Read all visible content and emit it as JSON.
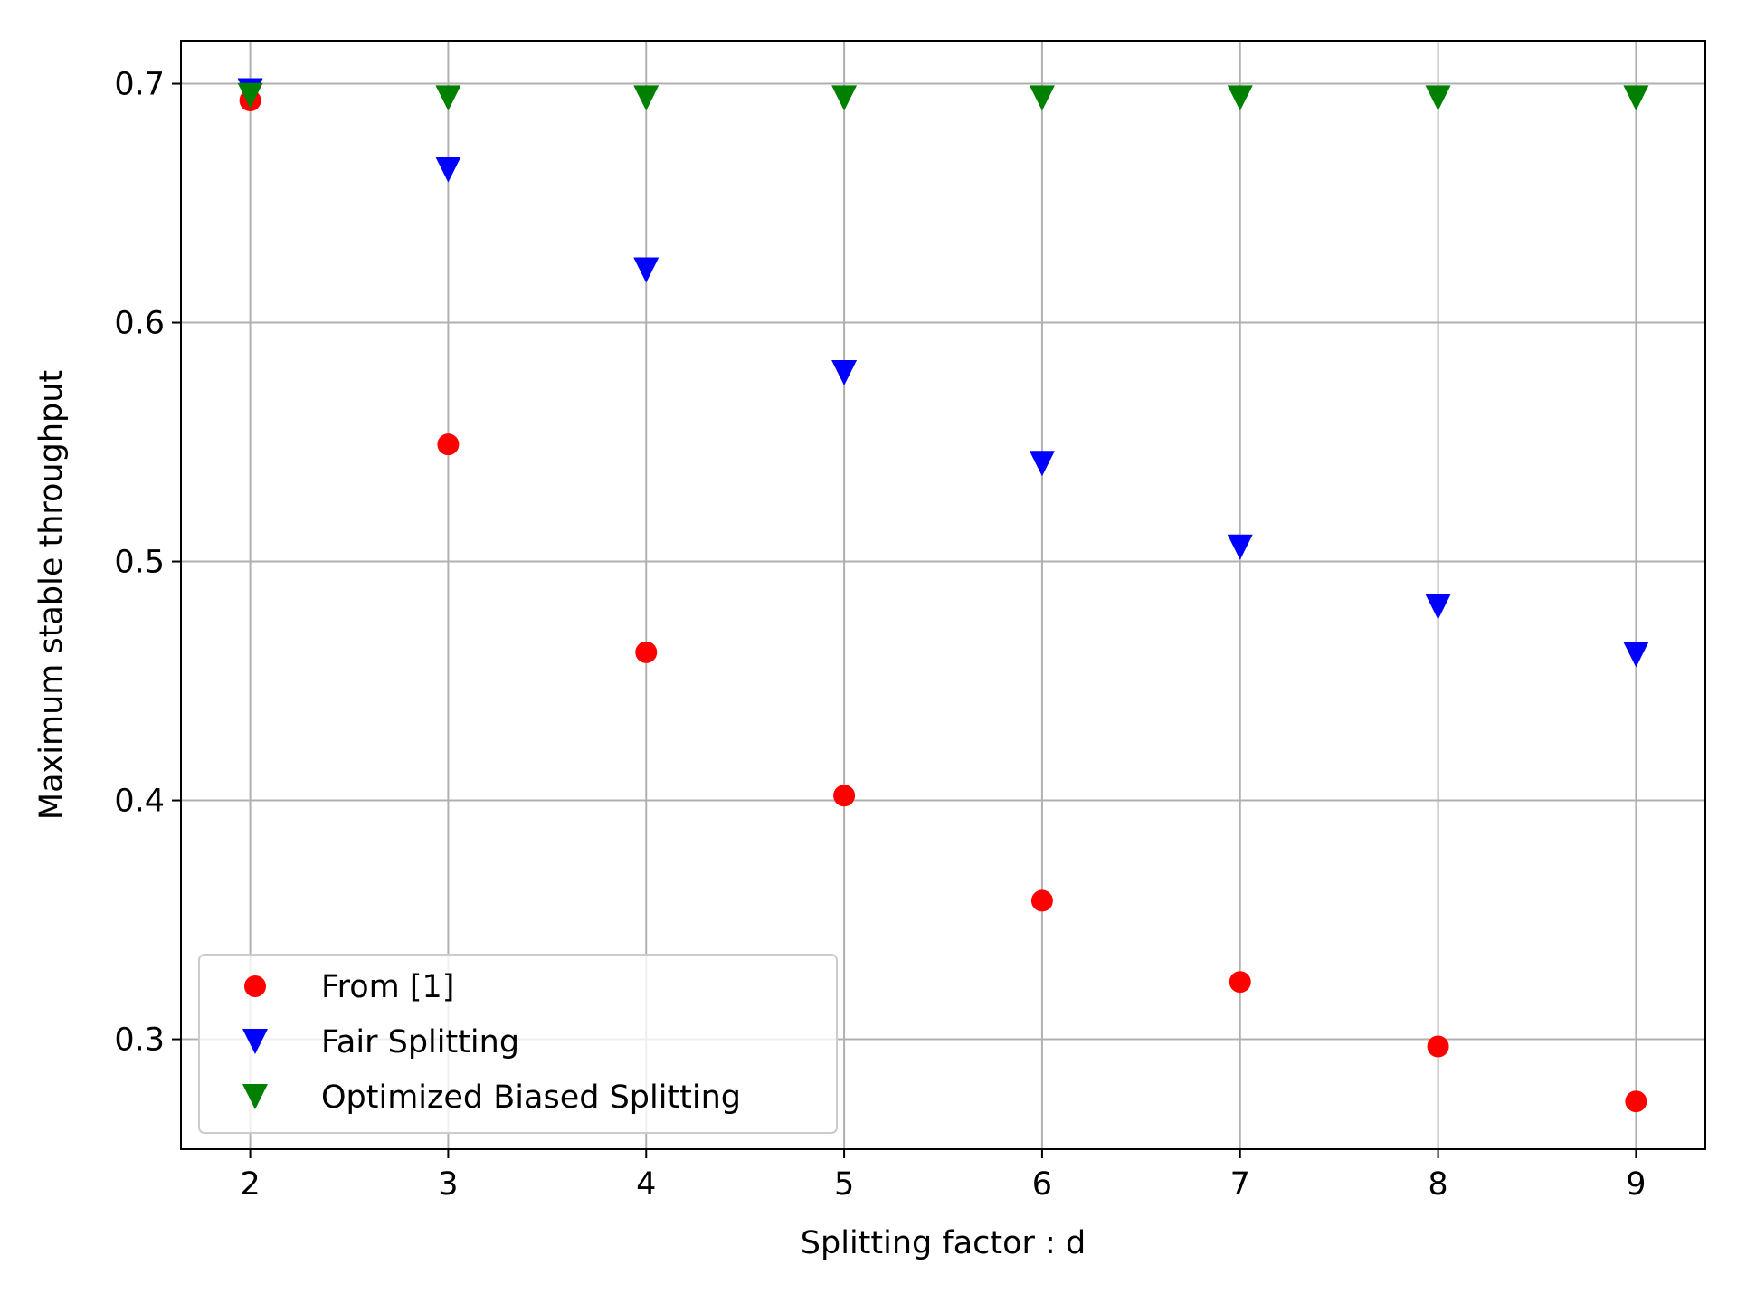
{
  "chart_data": {
    "type": "scatter",
    "title": "",
    "xlabel": "Splitting factor : d",
    "ylabel": "Maximum stable throughput",
    "x": [
      2,
      3,
      4,
      5,
      6,
      7,
      8,
      9
    ],
    "xlim": [
      1.65,
      9.35
    ],
    "ylim": [
      0.254,
      0.718
    ],
    "xticks": [
      "2",
      "3",
      "4",
      "5",
      "6",
      "7",
      "8",
      "9"
    ],
    "yticks": [
      "0.3",
      "0.4",
      "0.5",
      "0.6",
      "0.7"
    ],
    "grid": true,
    "legend_position": "lower-left",
    "series": [
      {
        "name": "From [1]",
        "marker": "circle",
        "color": "#ff0000",
        "values": [
          0.693,
          0.549,
          0.462,
          0.402,
          0.358,
          0.324,
          0.297,
          0.274
        ]
      },
      {
        "name": "Fair Splitting",
        "marker": "triangle-down",
        "color": "#0000ff",
        "values": [
          0.697,
          0.664,
          0.622,
          0.579,
          0.541,
          0.506,
          0.481,
          0.461
        ]
      },
      {
        "name": "Optimized Biased Splitting",
        "marker": "triangle-down",
        "color": "#008000",
        "values": [
          0.695,
          0.694,
          0.694,
          0.694,
          0.694,
          0.694,
          0.694,
          0.694
        ]
      }
    ]
  }
}
